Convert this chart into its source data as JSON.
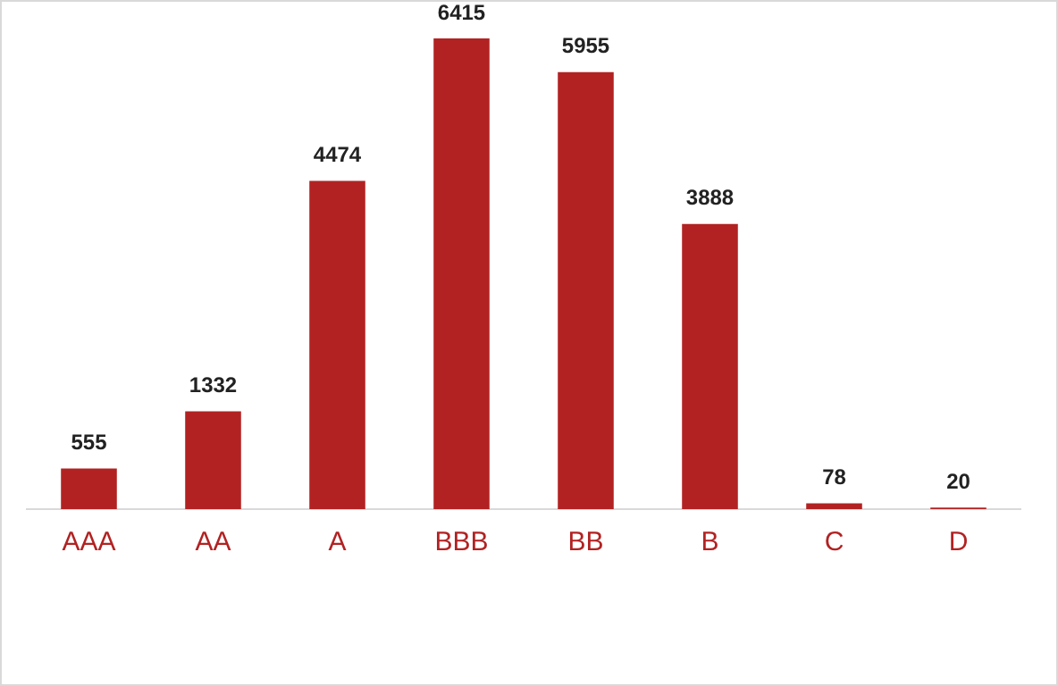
{
  "chart_data": {
    "type": "bar",
    "categories": [
      "AAA",
      "AA",
      "A",
      "BBB",
      "BB",
      "B",
      "C",
      "D"
    ],
    "values": [
      555,
      1332,
      4474,
      6415,
      5955,
      3888,
      78,
      20
    ],
    "color": "#b22222",
    "data_labels": true,
    "grid": false,
    "legend": false
  }
}
